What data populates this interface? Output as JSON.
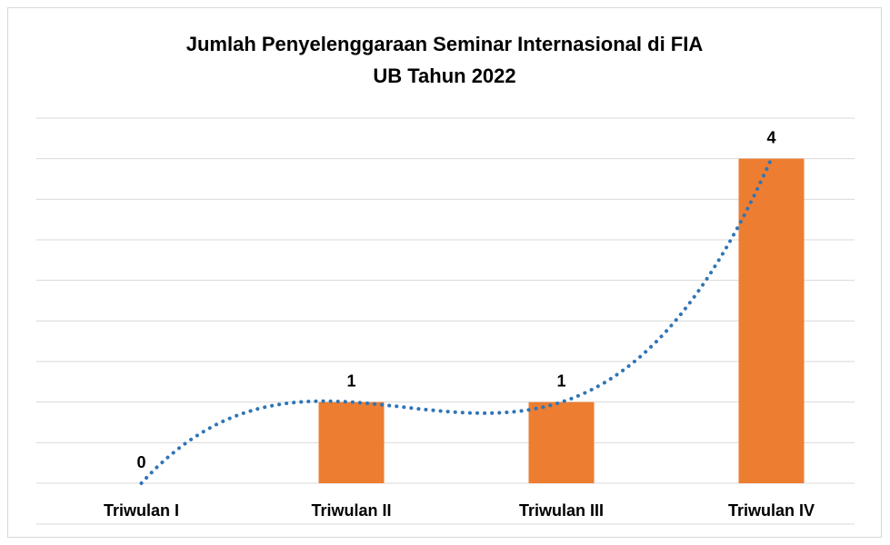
{
  "chart_data": {
    "type": "bar",
    "title": [
      "Jumlah Penyelenggaraan Seminar Internasional di FIA",
      "UB Tahun 2022"
    ],
    "categories": [
      "Triwulan I",
      "Triwulan II",
      "Triwulan III",
      "Triwulan IV"
    ],
    "values": [
      0,
      1,
      1,
      4
    ],
    "color": "#ed7d31",
    "ylim": [
      0,
      4.5
    ],
    "yticks": [
      0,
      0.5,
      1,
      1.5,
      2,
      2.5,
      3,
      3.5,
      4,
      4.5
    ],
    "grid": true,
    "trendline": {
      "type": "polynomial",
      "color": "#2e75b6"
    }
  }
}
